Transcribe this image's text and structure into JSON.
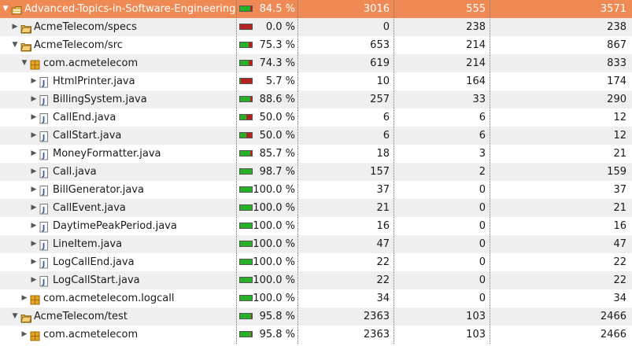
{
  "rows": [
    {
      "name": "Advanced-Topics-in-Software-Engineering",
      "icon": "project-folder-icon",
      "depth": 0,
      "twisty": "expanded",
      "coverage": "84.5 %",
      "cov_value": 0.845,
      "covered": "3016",
      "missed": "555",
      "total": "3571"
    },
    {
      "name": "AcmeTelecom/specs",
      "icon": "source-folder-icon",
      "depth": 1,
      "twisty": "collapsed",
      "coverage": "0.0 %",
      "cov_value": 0.0,
      "covered": "0",
      "missed": "238",
      "total": "238"
    },
    {
      "name": "AcmeTelecom/src",
      "icon": "source-folder-icon",
      "depth": 1,
      "twisty": "expanded",
      "coverage": "75.3 %",
      "cov_value": 0.753,
      "covered": "653",
      "missed": "214",
      "total": "867"
    },
    {
      "name": "com.acmetelecom",
      "icon": "package-icon",
      "depth": 2,
      "twisty": "expanded",
      "coverage": "74.3 %",
      "cov_value": 0.743,
      "covered": "619",
      "missed": "214",
      "total": "833"
    },
    {
      "name": "HtmlPrinter.java",
      "icon": "java-file-icon",
      "depth": 3,
      "twisty": "collapsed",
      "coverage": "5.7 %",
      "cov_value": 0.057,
      "covered": "10",
      "missed": "164",
      "total": "174"
    },
    {
      "name": "BillingSystem.java",
      "icon": "java-file-icon",
      "depth": 3,
      "twisty": "collapsed",
      "coverage": "88.6 %",
      "cov_value": 0.886,
      "covered": "257",
      "missed": "33",
      "total": "290"
    },
    {
      "name": "CallEnd.java",
      "icon": "java-file-icon",
      "depth": 3,
      "twisty": "collapsed",
      "coverage": "50.0 %",
      "cov_value": 0.5,
      "covered": "6",
      "missed": "6",
      "total": "12"
    },
    {
      "name": "CallStart.java",
      "icon": "java-file-icon",
      "depth": 3,
      "twisty": "collapsed",
      "coverage": "50.0 %",
      "cov_value": 0.5,
      "covered": "6",
      "missed": "6",
      "total": "12"
    },
    {
      "name": "MoneyFormatter.java",
      "icon": "java-file-icon",
      "depth": 3,
      "twisty": "collapsed",
      "coverage": "85.7 %",
      "cov_value": 0.857,
      "covered": "18",
      "missed": "3",
      "total": "21"
    },
    {
      "name": "Call.java",
      "icon": "java-file-icon",
      "depth": 3,
      "twisty": "collapsed",
      "coverage": "98.7 %",
      "cov_value": 0.987,
      "covered": "157",
      "missed": "2",
      "total": "159"
    },
    {
      "name": "BillGenerator.java",
      "icon": "java-file-icon",
      "depth": 3,
      "twisty": "collapsed",
      "coverage": "100.0 %",
      "cov_value": 1.0,
      "covered": "37",
      "missed": "0",
      "total": "37"
    },
    {
      "name": "CallEvent.java",
      "icon": "java-file-icon",
      "depth": 3,
      "twisty": "collapsed",
      "coverage": "100.0 %",
      "cov_value": 1.0,
      "covered": "21",
      "missed": "0",
      "total": "21"
    },
    {
      "name": "DaytimePeakPeriod.java",
      "icon": "java-file-icon",
      "depth": 3,
      "twisty": "collapsed",
      "coverage": "100.0 %",
      "cov_value": 1.0,
      "covered": "16",
      "missed": "0",
      "total": "16"
    },
    {
      "name": "LineItem.java",
      "icon": "java-file-icon",
      "depth": 3,
      "twisty": "collapsed",
      "coverage": "100.0 %",
      "cov_value": 1.0,
      "covered": "47",
      "missed": "0",
      "total": "47"
    },
    {
      "name": "LogCallEnd.java",
      "icon": "java-file-icon",
      "depth": 3,
      "twisty": "collapsed",
      "coverage": "100.0 %",
      "cov_value": 1.0,
      "covered": "22",
      "missed": "0",
      "total": "22"
    },
    {
      "name": "LogCallStart.java",
      "icon": "java-file-icon",
      "depth": 3,
      "twisty": "collapsed",
      "coverage": "100.0 %",
      "cov_value": 1.0,
      "covered": "22",
      "missed": "0",
      "total": "22"
    },
    {
      "name": "com.acmetelecom.logcall",
      "icon": "package-icon",
      "depth": 2,
      "twisty": "collapsed",
      "coverage": "100.0 %",
      "cov_value": 1.0,
      "covered": "34",
      "missed": "0",
      "total": "34"
    },
    {
      "name": "AcmeTelecom/test",
      "icon": "source-folder-icon",
      "depth": 1,
      "twisty": "expanded",
      "coverage": "95.8 %",
      "cov_value": 0.958,
      "covered": "2363",
      "missed": "103",
      "total": "2466"
    },
    {
      "name": "com.acmetelecom",
      "icon": "package-icon",
      "depth": 2,
      "twisty": "collapsed",
      "coverage": "95.8 %",
      "cov_value": 0.958,
      "covered": "2363",
      "missed": "103",
      "total": "2466"
    }
  ],
  "colors": {
    "selected_row": "#f08a55",
    "covered_bar": "#26b126",
    "missed_bar": "#b52222",
    "alt_row": "#efefef",
    "package_icon": "#c8860d",
    "folder_icon": "#e8b64a"
  }
}
